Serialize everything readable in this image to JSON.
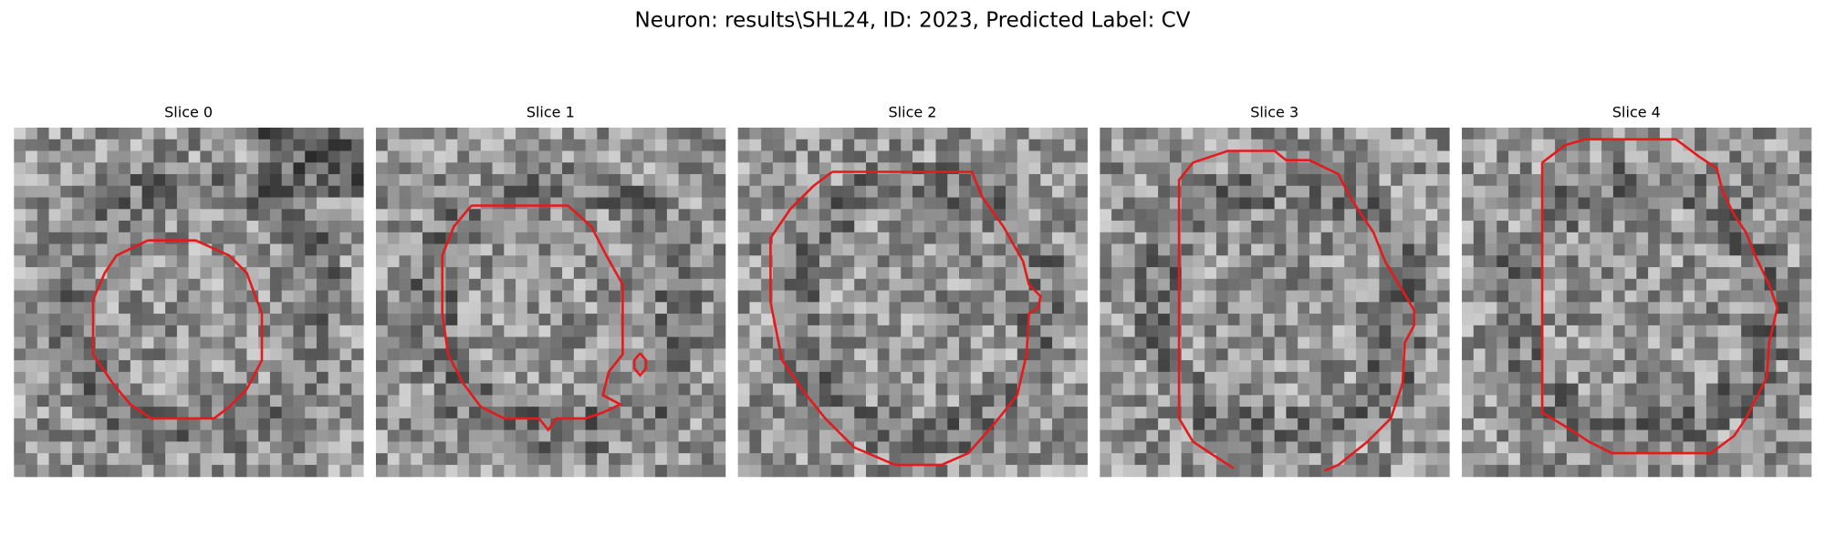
{
  "header": {
    "title": "Neuron: results\\SHL24, ID: 2023, Predicted Label: CV"
  },
  "panels": [
    {
      "title": "Slice 0"
    },
    {
      "title": "Slice 1"
    },
    {
      "title": "Slice 2"
    },
    {
      "title": "Slice 3"
    },
    {
      "title": "Slice 4"
    }
  ]
}
